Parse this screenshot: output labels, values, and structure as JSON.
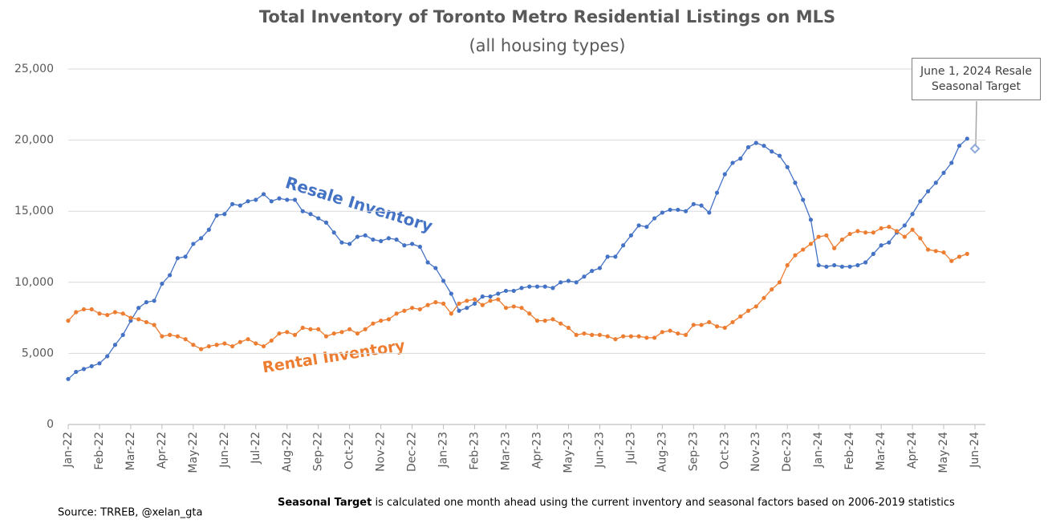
{
  "chart_data": {
    "type": "line",
    "title": "Total Inventory of Toronto Metro Residential Listings on MLS",
    "subtitle": "(all housing types)",
    "categories": [
      "Jan-22",
      null,
      null,
      null,
      "Feb-22",
      null,
      null,
      null,
      "Mar-22",
      null,
      null,
      null,
      "Apr-22",
      null,
      null,
      null,
      "May-22",
      null,
      null,
      null,
      "Jun-22",
      null,
      null,
      null,
      "Jul-22",
      null,
      null,
      null,
      "Aug-22",
      null,
      null,
      null,
      "Sep-22",
      null,
      null,
      null,
      "Oct-22",
      null,
      null,
      null,
      "Nov-22",
      null,
      null,
      null,
      "Dec-22",
      null,
      null,
      null,
      "Jan-23",
      null,
      null,
      null,
      "Feb-23",
      null,
      null,
      null,
      "Mar-23",
      null,
      null,
      null,
      "Apr-23",
      null,
      null,
      null,
      "May-23",
      null,
      null,
      null,
      "Jun-23",
      null,
      null,
      null,
      "Jul-23",
      null,
      null,
      null,
      "Aug-23",
      null,
      null,
      null,
      "Sep-23",
      null,
      null,
      null,
      "Oct-23",
      null,
      null,
      null,
      "Nov-23",
      null,
      null,
      null,
      "Dec-23",
      null,
      null,
      null,
      "Jan-24",
      null,
      null,
      null,
      "Feb-24",
      null,
      null,
      null,
      "Mar-24",
      null,
      null,
      null,
      "Apr-24",
      null,
      null,
      null,
      "May-24",
      null,
      null,
      null,
      "Jun-24"
    ],
    "series": [
      {
        "name": "Resale Inventory",
        "color": "#4472c4",
        "values": [
          3200,
          3700,
          3900,
          4100,
          4300,
          4800,
          5600,
          6300,
          7300,
          8200,
          8600,
          8700,
          9900,
          10500,
          11700,
          11800,
          12700,
          13100,
          13700,
          14700,
          14800,
          15500,
          15400,
          15700,
          15800,
          16200,
          15700,
          15900,
          15800,
          15800,
          15000,
          14800,
          14500,
          14200,
          13500,
          12800,
          12700,
          13200,
          13300,
          13000,
          12900,
          13100,
          13000,
          12600,
          12700,
          12500,
          11400,
          11000,
          10100,
          9200,
          8000,
          8200,
          8500,
          9000,
          9000,
          9200,
          9400,
          9400,
          9600,
          9700,
          9700,
          9700,
          9600,
          10000,
          10100,
          10000,
          10400,
          10800,
          11000,
          11800,
          11800,
          12600,
          13300,
          14000,
          13900,
          14500,
          14900,
          15100,
          15100,
          15000,
          15500,
          15400,
          14900,
          16300,
          17600,
          18400,
          18700,
          19500,
          19800,
          19600,
          19200,
          18900,
          18100,
          17000,
          15800,
          14400,
          11200,
          11100,
          11200,
          11100,
          11100,
          11200,
          11400,
          12000,
          12600,
          12800,
          13500,
          14000,
          14800,
          15700,
          16400,
          17000,
          17700,
          18400,
          19600,
          20100,
          null
        ]
      },
      {
        "name": "Rental Inventory",
        "color": "#ed7d31",
        "values": [
          7300,
          7900,
          8100,
          8100,
          7800,
          7700,
          7900,
          7800,
          7500,
          7400,
          7200,
          7000,
          6200,
          6300,
          6200,
          6000,
          5600,
          5300,
          5500,
          5600,
          5700,
          5500,
          5800,
          6000,
          5700,
          5500,
          5900,
          6400,
          6500,
          6300,
          6800,
          6700,
          6700,
          6200,
          6400,
          6500,
          6700,
          6400,
          6700,
          7100,
          7300,
          7400,
          7800,
          8000,
          8200,
          8100,
          8400,
          8600,
          8500,
          7800,
          8500,
          8700,
          8800,
          8400,
          8700,
          8800,
          8200,
          8300,
          8200,
          7800,
          7300,
          7300,
          7400,
          7100,
          6800,
          6300,
          6400,
          6300,
          6300,
          6200,
          6000,
          6200,
          6200,
          6200,
          6100,
          6100,
          6500,
          6600,
          6400,
          6300,
          7000,
          7000,
          7200,
          6900,
          6800,
          7200,
          7600,
          8000,
          8300,
          8900,
          9500,
          10000,
          11200,
          11900,
          12300,
          12700,
          13200,
          13300,
          12400,
          13000,
          13400,
          13600,
          13500,
          13500,
          13800,
          13900,
          13600,
          13200,
          13700,
          13100,
          12300,
          12200,
          12100,
          11500,
          11800,
          12000,
          null
        ]
      },
      {
        "name": "June 1, 2024 Resale Seasonal Target",
        "color": "#8faadc",
        "values": [
          null,
          null,
          null,
          null,
          null,
          null,
          null,
          null,
          null,
          null,
          null,
          null,
          null,
          null,
          null,
          null,
          null,
          null,
          null,
          null,
          null,
          null,
          null,
          null,
          null,
          null,
          null,
          null,
          null,
          null,
          null,
          null,
          null,
          null,
          null,
          null,
          null,
          null,
          null,
          null,
          null,
          null,
          null,
          null,
          null,
          null,
          null,
          null,
          null,
          null,
          null,
          null,
          null,
          null,
          null,
          null,
          null,
          null,
          null,
          null,
          null,
          null,
          null,
          null,
          null,
          null,
          null,
          null,
          null,
          null,
          null,
          null,
          null,
          null,
          null,
          null,
          null,
          null,
          null,
          null,
          null,
          null,
          null,
          null,
          null,
          null,
          null,
          null,
          null,
          null,
          null,
          null,
          null,
          null,
          null,
          null,
          null,
          null,
          null,
          null,
          null,
          null,
          null,
          null,
          null,
          null,
          null,
          null,
          null,
          null,
          null,
          null,
          null,
          null,
          null,
          null,
          19400
        ]
      }
    ],
    "ylim": [
      0,
      25000
    ],
    "yticks": [
      0,
      {
        "value": 5000,
        "label": "5,000"
      },
      {
        "value": 10000,
        "label": "10,000"
      },
      {
        "value": 15000,
        "label": "15,000"
      },
      {
        "value": 20000,
        "label": "20,000"
      },
      {
        "value": 25000,
        "label": "25,000"
      }
    ],
    "grid": true,
    "source": "Source: TRREB, @xelan_gta",
    "note_bold": "Seasonal Target",
    "note": "is calculated one month ahead using the current inventory and seasonal factors based on 2006-2019 statistics"
  }
}
